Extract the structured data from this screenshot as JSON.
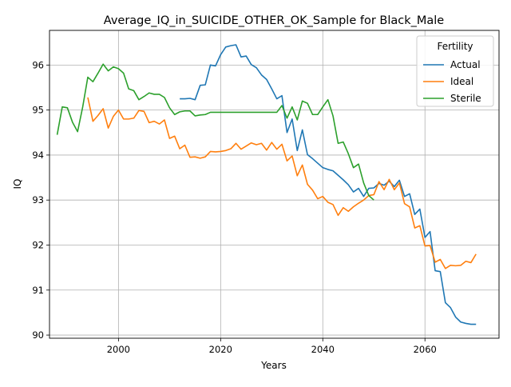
{
  "chart_data": {
    "type": "line",
    "title": "Average_IQ_in_SUICIDE_OTHER_OK_Sample for Black_Male",
    "xlabel": "Years",
    "ylabel": "IQ",
    "xlim": [
      1986.5,
      2074.5
    ],
    "ylim": [
      89.93,
      96.77
    ],
    "xticks": [
      2000,
      2020,
      2040,
      2060
    ],
    "yticks": [
      90,
      91,
      92,
      93,
      94,
      95,
      96
    ],
    "grid": true,
    "legend": {
      "title": "Fertility",
      "position": "top-right"
    },
    "series": [
      {
        "name": "Actual",
        "color": "#1f77b4",
        "points": [
          [
            2012,
            95.25
          ],
          [
            2013,
            95.25
          ],
          [
            2014,
            95.26
          ],
          [
            2015,
            95.23
          ],
          [
            2016,
            95.55
          ],
          [
            2017,
            95.56
          ],
          [
            2018,
            96.0
          ],
          [
            2019,
            95.98
          ],
          [
            2020,
            96.23
          ],
          [
            2021,
            96.4
          ],
          [
            2022,
            96.43
          ],
          [
            2023,
            96.45
          ],
          [
            2024,
            96.18
          ],
          [
            2025,
            96.2
          ],
          [
            2026,
            96.01
          ],
          [
            2027,
            95.94
          ],
          [
            2028,
            95.78
          ],
          [
            2029,
            95.68
          ],
          [
            2030,
            95.47
          ],
          [
            2031,
            95.25
          ],
          [
            2032,
            95.32
          ],
          [
            2033,
            94.5
          ],
          [
            2034,
            94.8
          ],
          [
            2035,
            94.1
          ],
          [
            2036,
            94.56
          ],
          [
            2037,
            94.01
          ],
          [
            2038,
            93.92
          ],
          [
            2039,
            93.82
          ],
          [
            2040,
            93.72
          ],
          [
            2041,
            93.68
          ],
          [
            2042,
            93.65
          ],
          [
            2043,
            93.55
          ],
          [
            2044,
            93.45
          ],
          [
            2045,
            93.34
          ],
          [
            2046,
            93.18
          ],
          [
            2047,
            93.26
          ],
          [
            2048,
            93.08
          ],
          [
            2049,
            93.26
          ],
          [
            2050,
            93.27
          ],
          [
            2051,
            93.37
          ],
          [
            2052,
            93.33
          ],
          [
            2053,
            93.42
          ],
          [
            2054,
            93.3
          ],
          [
            2055,
            93.44
          ],
          [
            2056,
            93.08
          ],
          [
            2057,
            93.14
          ],
          [
            2058,
            92.68
          ],
          [
            2059,
            92.8
          ],
          [
            2060,
            92.17
          ],
          [
            2061,
            92.3
          ],
          [
            2062,
            91.43
          ],
          [
            2063,
            91.41
          ],
          [
            2064,
            90.72
          ],
          [
            2065,
            90.61
          ],
          [
            2066,
            90.4
          ],
          [
            2067,
            90.29
          ],
          [
            2068,
            90.26
          ],
          [
            2069,
            90.24
          ],
          [
            2070,
            90.24
          ]
        ]
      },
      {
        "name": "Ideal",
        "color": "#ff7f0e",
        "points": [
          [
            1994,
            95.28
          ],
          [
            1995,
            94.75
          ],
          [
            1996,
            94.88
          ],
          [
            1997,
            95.03
          ],
          [
            1998,
            94.6
          ],
          [
            1999,
            94.86
          ],
          [
            2000,
            95.0
          ],
          [
            2001,
            94.8
          ],
          [
            2002,
            94.8
          ],
          [
            2003,
            94.82
          ],
          [
            2004,
            94.99
          ],
          [
            2005,
            94.97
          ],
          [
            2006,
            94.72
          ],
          [
            2007,
            94.75
          ],
          [
            2008,
            94.69
          ],
          [
            2009,
            94.78
          ],
          [
            2010,
            94.37
          ],
          [
            2011,
            94.42
          ],
          [
            2012,
            94.14
          ],
          [
            2013,
            94.22
          ],
          [
            2014,
            93.95
          ],
          [
            2015,
            93.96
          ],
          [
            2016,
            93.93
          ],
          [
            2017,
            93.96
          ],
          [
            2018,
            94.08
          ],
          [
            2019,
            94.07
          ],
          [
            2020,
            94.08
          ],
          [
            2021,
            94.1
          ],
          [
            2022,
            94.14
          ],
          [
            2023,
            94.26
          ],
          [
            2024,
            94.13
          ],
          [
            2025,
            94.2
          ],
          [
            2026,
            94.27
          ],
          [
            2027,
            94.23
          ],
          [
            2028,
            94.26
          ],
          [
            2029,
            94.11
          ],
          [
            2030,
            94.28
          ],
          [
            2031,
            94.13
          ],
          [
            2032,
            94.24
          ],
          [
            2033,
            93.87
          ],
          [
            2034,
            93.98
          ],
          [
            2035,
            93.54
          ],
          [
            2036,
            93.78
          ],
          [
            2037,
            93.35
          ],
          [
            2038,
            93.22
          ],
          [
            2039,
            93.03
          ],
          [
            2040,
            93.08
          ],
          [
            2041,
            92.95
          ],
          [
            2042,
            92.9
          ],
          [
            2043,
            92.66
          ],
          [
            2044,
            92.83
          ],
          [
            2045,
            92.75
          ],
          [
            2046,
            92.85
          ],
          [
            2047,
            92.93
          ],
          [
            2048,
            93.0
          ],
          [
            2049,
            93.1
          ],
          [
            2050,
            93.12
          ],
          [
            2051,
            93.41
          ],
          [
            2052,
            93.23
          ],
          [
            2053,
            93.46
          ],
          [
            2054,
            93.23
          ],
          [
            2055,
            93.38
          ],
          [
            2056,
            92.92
          ],
          [
            2057,
            92.85
          ],
          [
            2058,
            92.38
          ],
          [
            2059,
            92.43
          ],
          [
            2060,
            91.98
          ],
          [
            2061,
            91.99
          ],
          [
            2062,
            91.62
          ],
          [
            2063,
            91.68
          ],
          [
            2064,
            91.48
          ],
          [
            2065,
            91.55
          ],
          [
            2066,
            91.54
          ],
          [
            2067,
            91.55
          ],
          [
            2068,
            91.64
          ],
          [
            2069,
            91.61
          ],
          [
            2070,
            91.8
          ]
        ]
      },
      {
        "name": "Sterile",
        "color": "#2ca02c",
        "points": [
          [
            1988,
            94.45
          ],
          [
            1989,
            95.07
          ],
          [
            1990,
            95.05
          ],
          [
            1991,
            94.73
          ],
          [
            1992,
            94.52
          ],
          [
            1993,
            95.07
          ],
          [
            1994,
            95.73
          ],
          [
            1995,
            95.63
          ],
          [
            1996,
            95.82
          ],
          [
            1997,
            96.02
          ],
          [
            1998,
            95.87
          ],
          [
            1999,
            95.96
          ],
          [
            2000,
            95.92
          ],
          [
            2001,
            95.82
          ],
          [
            2002,
            95.47
          ],
          [
            2003,
            95.43
          ],
          [
            2004,
            95.23
          ],
          [
            2005,
            95.3
          ],
          [
            2006,
            95.38
          ],
          [
            2007,
            95.35
          ],
          [
            2008,
            95.35
          ],
          [
            2009,
            95.28
          ],
          [
            2010,
            95.05
          ],
          [
            2011,
            94.9
          ],
          [
            2012,
            94.96
          ],
          [
            2013,
            94.98
          ],
          [
            2014,
            94.98
          ],
          [
            2015,
            94.87
          ],
          [
            2016,
            94.89
          ],
          [
            2017,
            94.9
          ],
          [
            2018,
            94.95
          ],
          [
            2019,
            94.95
          ],
          [
            2020,
            94.95
          ],
          [
            2021,
            94.95
          ],
          [
            2022,
            94.95
          ],
          [
            2023,
            94.95
          ],
          [
            2024,
            94.95
          ],
          [
            2025,
            94.95
          ],
          [
            2026,
            94.95
          ],
          [
            2027,
            94.95
          ],
          [
            2028,
            94.95
          ],
          [
            2029,
            94.95
          ],
          [
            2030,
            94.95
          ],
          [
            2031,
            94.95
          ],
          [
            2032,
            95.1
          ],
          [
            2033,
            94.82
          ],
          [
            2034,
            95.07
          ],
          [
            2035,
            94.78
          ],
          [
            2036,
            95.2
          ],
          [
            2037,
            95.15
          ],
          [
            2038,
            94.9
          ],
          [
            2039,
            94.9
          ],
          [
            2040,
            95.07
          ],
          [
            2041,
            95.23
          ],
          [
            2042,
            94.87
          ],
          [
            2043,
            94.26
          ],
          [
            2044,
            94.29
          ],
          [
            2045,
            94.03
          ],
          [
            2046,
            93.72
          ],
          [
            2047,
            93.8
          ],
          [
            2048,
            93.38
          ],
          [
            2049,
            93.1
          ],
          [
            2050,
            93.0
          ]
        ]
      }
    ]
  }
}
